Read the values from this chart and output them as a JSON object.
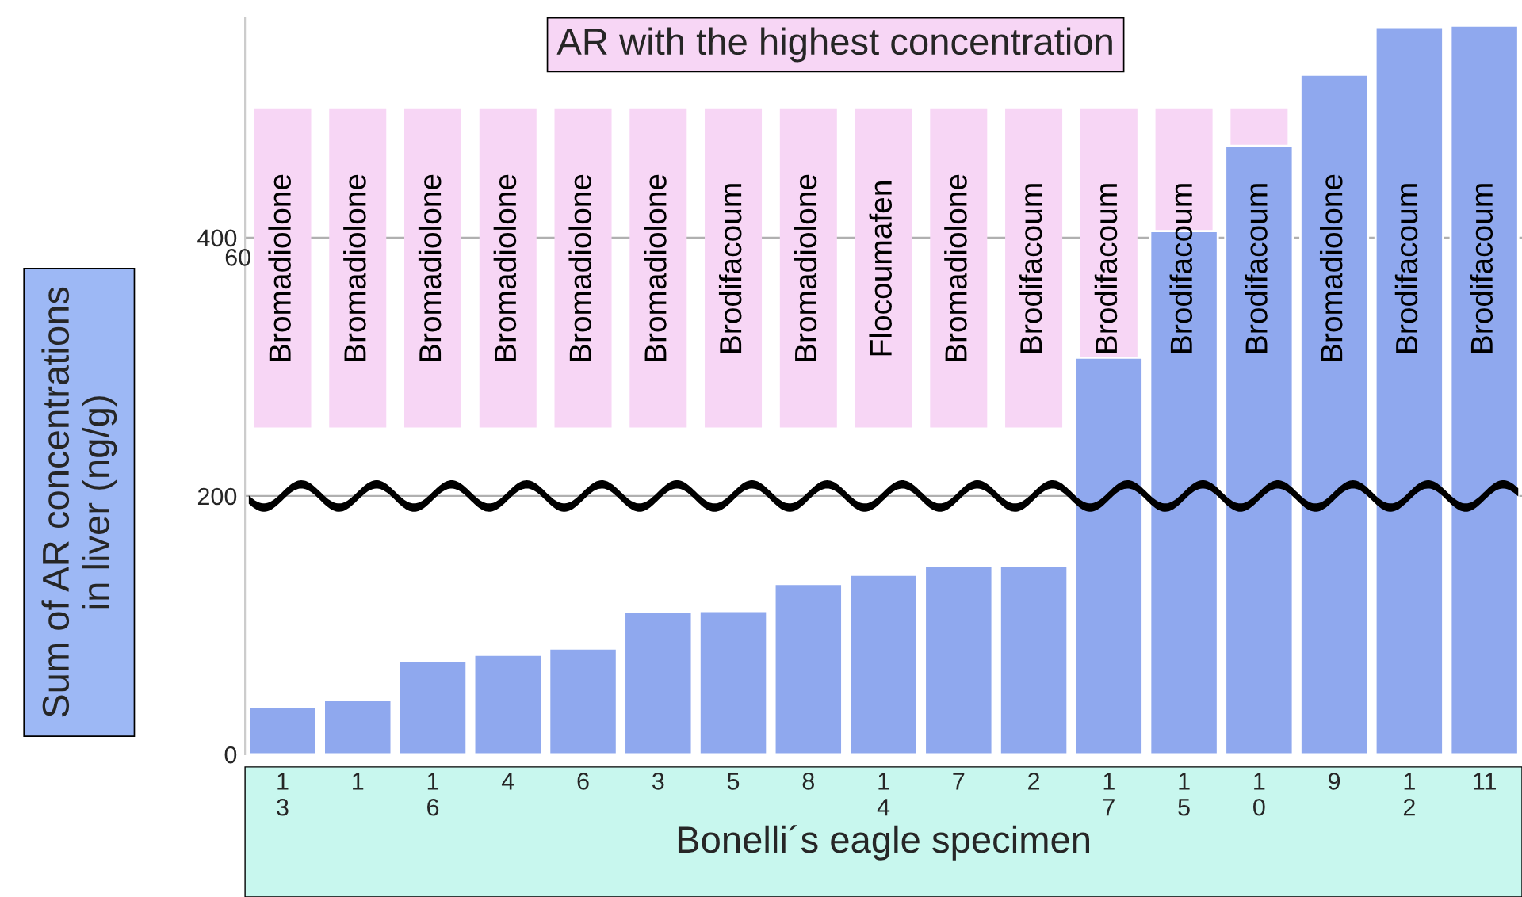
{
  "chart_data": {
    "type": "bar",
    "title": "AR with the highest concentration",
    "xlabel": "Bonelli´s eagle specimen",
    "ylabel": "Sum of AR concentrations\nin liver (ng/g)",
    "categories": [
      "1\n3",
      "1",
      "1\n6",
      "4",
      "6",
      "3",
      "5",
      "8",
      "1\n4",
      "7",
      "2",
      "1\n7",
      "1\n5",
      "1\n0",
      "9",
      "1\n2",
      "11"
    ],
    "values": [
      37,
      42,
      72,
      77,
      82,
      110,
      111,
      132,
      139,
      146,
      146,
      307,
      405,
      471,
      526,
      563,
      564
    ],
    "color": "#8fa8ee",
    "ylim": [
      0,
      570
    ],
    "yticks": [
      0,
      200,
      400
    ],
    "grid": "y",
    "annotations": [
      "Bromadiolone",
      "Bromadiolone",
      "Bromadiolone",
      "Bromadiolone",
      "Bromadiolone",
      "Bromadiolone",
      "Brodifacoum",
      "Bromadiolone",
      "Flocoumafen",
      "Bromadiolone",
      "Brodifacoum",
      "Brodifacoum",
      "Brodifacoum",
      "Brodifacoum",
      "Bromadiolone",
      "Brodifacoum",
      "Brodifacoum",
      "60"
    ]
  }
}
